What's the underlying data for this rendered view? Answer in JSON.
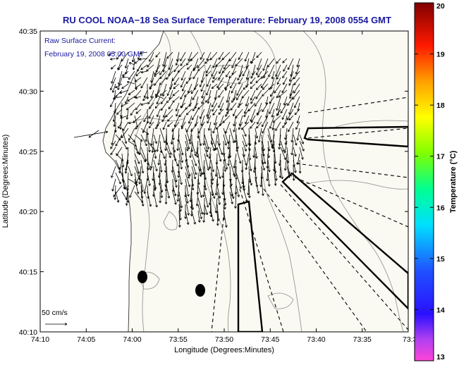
{
  "chart_data": {
    "type": "quiver",
    "title": "RU COOL  NOAA−18  Sea Surface Temperature:  February 19, 2008 0554 GMT",
    "annotation_lines": [
      "Raw Surface Current:",
      "February 19, 2008 05:00 GMT"
    ],
    "xlabel": "Longitude (Degrees:Minutes)",
    "ylabel": "Latitude (Degrees:Minutes)",
    "x_ticks": [
      "74:10",
      "74:05",
      "74:00",
      "73:55",
      "73:50",
      "73:45",
      "73:40",
      "73:35",
      "73:3"
    ],
    "y_ticks": [
      "40:10",
      "40:15",
      "40:20",
      "40:25",
      "40:30",
      "40:35"
    ],
    "xlim_minutes_west": [
      10,
      -30
    ],
    "ylim_minutes_north": [
      10,
      35
    ],
    "scale_label": "50 cm/s",
    "colorbar": {
      "label": "Temperature (°C)",
      "ticks": [
        "13",
        "14",
        "15",
        "16",
        "17",
        "18",
        "19",
        "20"
      ],
      "range": [
        13,
        20
      ]
    }
  }
}
